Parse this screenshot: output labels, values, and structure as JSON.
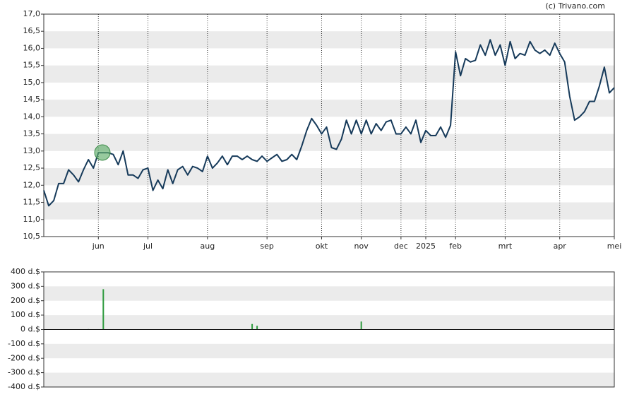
{
  "chart_data": [
    {
      "type": "line",
      "source": "(c) Trivano.com",
      "categories": [
        null,
        null,
        null,
        null,
        null,
        null,
        null,
        null,
        null,
        null,
        null,
        "jun",
        null,
        null,
        null,
        null,
        null,
        null,
        null,
        null,
        null,
        "jul",
        null,
        null,
        null,
        null,
        null,
        null,
        null,
        null,
        null,
        null,
        null,
        "aug",
        null,
        null,
        null,
        null,
        null,
        null,
        null,
        null,
        null,
        null,
        null,
        "sep",
        null,
        null,
        null,
        null,
        null,
        null,
        null,
        null,
        null,
        null,
        "okt",
        null,
        null,
        null,
        null,
        null,
        null,
        null,
        "nov",
        null,
        null,
        null,
        null,
        null,
        null,
        null,
        "dec",
        null,
        null,
        null,
        null,
        "2025",
        null,
        null,
        null,
        null,
        null,
        "feb",
        null,
        null,
        null,
        null,
        null,
        null,
        null,
        null,
        null,
        "mrt",
        null,
        null,
        null,
        null,
        null,
        null,
        null,
        null,
        null,
        null,
        "apr",
        null,
        null,
        null,
        null,
        null,
        null,
        null,
        null,
        null,
        null,
        "mei"
      ],
      "color": "#163a5a",
      "values": [
        11.85,
        11.4,
        11.55,
        12.05,
        12.05,
        12.45,
        12.3,
        12.1,
        12.45,
        12.75,
        12.5,
        12.95,
        12.95,
        12.95,
        12.9,
        12.6,
        13.0,
        12.3,
        12.3,
        12.2,
        12.45,
        12.5,
        11.85,
        12.15,
        11.9,
        12.45,
        12.05,
        12.45,
        12.55,
        12.3,
        12.55,
        12.5,
        12.4,
        12.85,
        12.5,
        12.65,
        12.85,
        12.6,
        12.85,
        12.85,
        12.75,
        12.85,
        12.75,
        12.7,
        12.85,
        12.7,
        12.8,
        12.9,
        12.7,
        12.75,
        12.9,
        12.75,
        13.15,
        13.6,
        13.95,
        13.75,
        13.5,
        13.7,
        13.1,
        13.05,
        13.35,
        13.9,
        13.5,
        13.9,
        13.5,
        13.9,
        13.5,
        13.8,
        13.6,
        13.85,
        13.9,
        13.5,
        13.5,
        13.7,
        13.5,
        13.9,
        13.25,
        13.6,
        13.45,
        13.45,
        13.7,
        13.4,
        13.75,
        15.9,
        15.2,
        15.7,
        15.6,
        15.65,
        16.1,
        15.8,
        16.25,
        15.8,
        16.1,
        15.5,
        16.2,
        15.7,
        15.85,
        15.8,
        16.2,
        15.95,
        15.85,
        15.95,
        15.8,
        16.15,
        15.85,
        15.6,
        14.6,
        13.9,
        14.0,
        14.15,
        14.45,
        14.45,
        14.9,
        15.45,
        14.7,
        14.85
      ],
      "ylim": [
        10.5,
        17.0
      ],
      "yticks": [
        {
          "value": 10.5,
          "label": "10,5"
        },
        {
          "value": 11,
          "label": "11,0"
        },
        {
          "value": 11.5,
          "label": "11,5"
        },
        {
          "value": 12,
          "label": "12,0"
        },
        {
          "value": 12.5,
          "label": "12,5"
        },
        {
          "value": 13,
          "label": "13,0"
        },
        {
          "value": 13.5,
          "label": "13,5"
        },
        {
          "value": 14,
          "label": "14,0"
        },
        {
          "value": 14.5,
          "label": "14,5"
        },
        {
          "value": 15,
          "label": "15,0"
        },
        {
          "value": 15.5,
          "label": "15,5"
        },
        {
          "value": 16,
          "label": "16,0"
        },
        {
          "value": 16.5,
          "label": "16,5"
        },
        {
          "value": 17,
          "label": "17,0"
        }
      ],
      "grid": true
    },
    {
      "type": "bar",
      "color": "#2e9a3e",
      "values": [
        null,
        null,
        null,
        null,
        null,
        null,
        null,
        null,
        null,
        3,
        null,
        null,
        280,
        null,
        null,
        null,
        null,
        null,
        null,
        null,
        null,
        null,
        null,
        null,
        null,
        null,
        null,
        null,
        null,
        null,
        null,
        null,
        null,
        null,
        null,
        null,
        null,
        null,
        null,
        null,
        null,
        null,
        38,
        25,
        null,
        null,
        null,
        null,
        null,
        null,
        null,
        null,
        null,
        null,
        null,
        null,
        null,
        null,
        null,
        null,
        null,
        null,
        null,
        null,
        55,
        null,
        null,
        null,
        null,
        null,
        null,
        null,
        null,
        null,
        null,
        null,
        null,
        null,
        null,
        null,
        null,
        null,
        null,
        null,
        null,
        null,
        null,
        null,
        null,
        null,
        null,
        null,
        null,
        null,
        null,
        null,
        null,
        null,
        null,
        null,
        null,
        null,
        null,
        null,
        null,
        null,
        null,
        null,
        null,
        null,
        null,
        null,
        null,
        null,
        null,
        null
      ],
      "ylim": [
        -400,
        400
      ],
      "yticks": [
        {
          "value": -400,
          "label": "-400 d.$"
        },
        {
          "value": -300,
          "label": "-300 d.$"
        },
        {
          "value": -200,
          "label": "-200 d.$"
        },
        {
          "value": -100,
          "label": "-100 d.$"
        },
        {
          "value": 0,
          "label": "0 d.$"
        },
        {
          "value": 100,
          "label": "100 d.$"
        },
        {
          "value": 200,
          "label": "200 d.$"
        },
        {
          "value": 300,
          "label": "300 d.$"
        },
        {
          "value": 400,
          "label": "400 d.$"
        }
      ],
      "grid": true
    }
  ]
}
